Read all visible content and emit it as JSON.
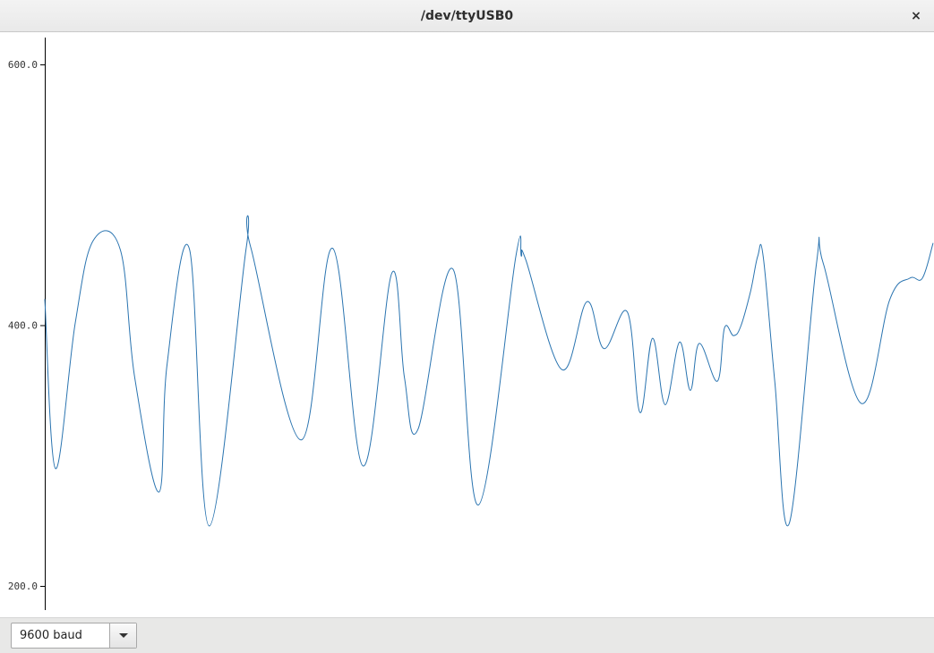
{
  "window": {
    "title": "/dev/ttyUSB0",
    "close_glyph": "×",
    "close_icon": "close-icon"
  },
  "footer": {
    "baud_selected": "9600 baud",
    "dropdown_icon": "chevron-down-icon"
  },
  "colors": {
    "series": "#2a74b0",
    "axis": "#000000",
    "background": "#ffffff",
    "footer": "#e8e8e7"
  },
  "chart_data": {
    "type": "line",
    "title": "",
    "xlabel": "",
    "ylabel": "",
    "ylim": [
      180,
      620
    ],
    "y_ticks": [
      {
        "value": 600,
        "label": "600.0"
      },
      {
        "value": 400,
        "label": "400.0"
      },
      {
        "value": 200,
        "label": "200.0"
      }
    ],
    "grid": false,
    "legend": "none",
    "series": [
      {
        "x": [
          0,
          12,
          34,
          54,
          84,
          100,
          127,
          136,
          161,
          183,
          224,
          229,
          285,
          320,
          354,
          386,
          400,
          415,
          454,
          482,
          524,
          530,
          535,
          575,
          603,
          622,
          648,
          662,
          676,
          690,
          706,
          718,
          728,
          748,
          756,
          766,
          774,
          785,
          793,
          799,
          812,
          828,
          858,
          866,
          908,
          940,
          962,
          976,
          988
        ],
        "values": [
          420,
          290,
          402,
          465,
          458,
          360,
          272,
          370,
          458,
          246,
          459,
          460,
          312,
          459,
          292,
          440,
          360,
          320,
          443,
          262,
          453,
          453,
          450,
          366,
          418,
          382,
          410,
          333,
          390,
          339,
          387,
          350,
          386,
          357,
          398,
          392,
          399,
          426,
          453,
          453,
          356,
          248,
          446,
          447,
          340,
          420,
          436,
          436,
          463
        ]
      }
    ]
  }
}
